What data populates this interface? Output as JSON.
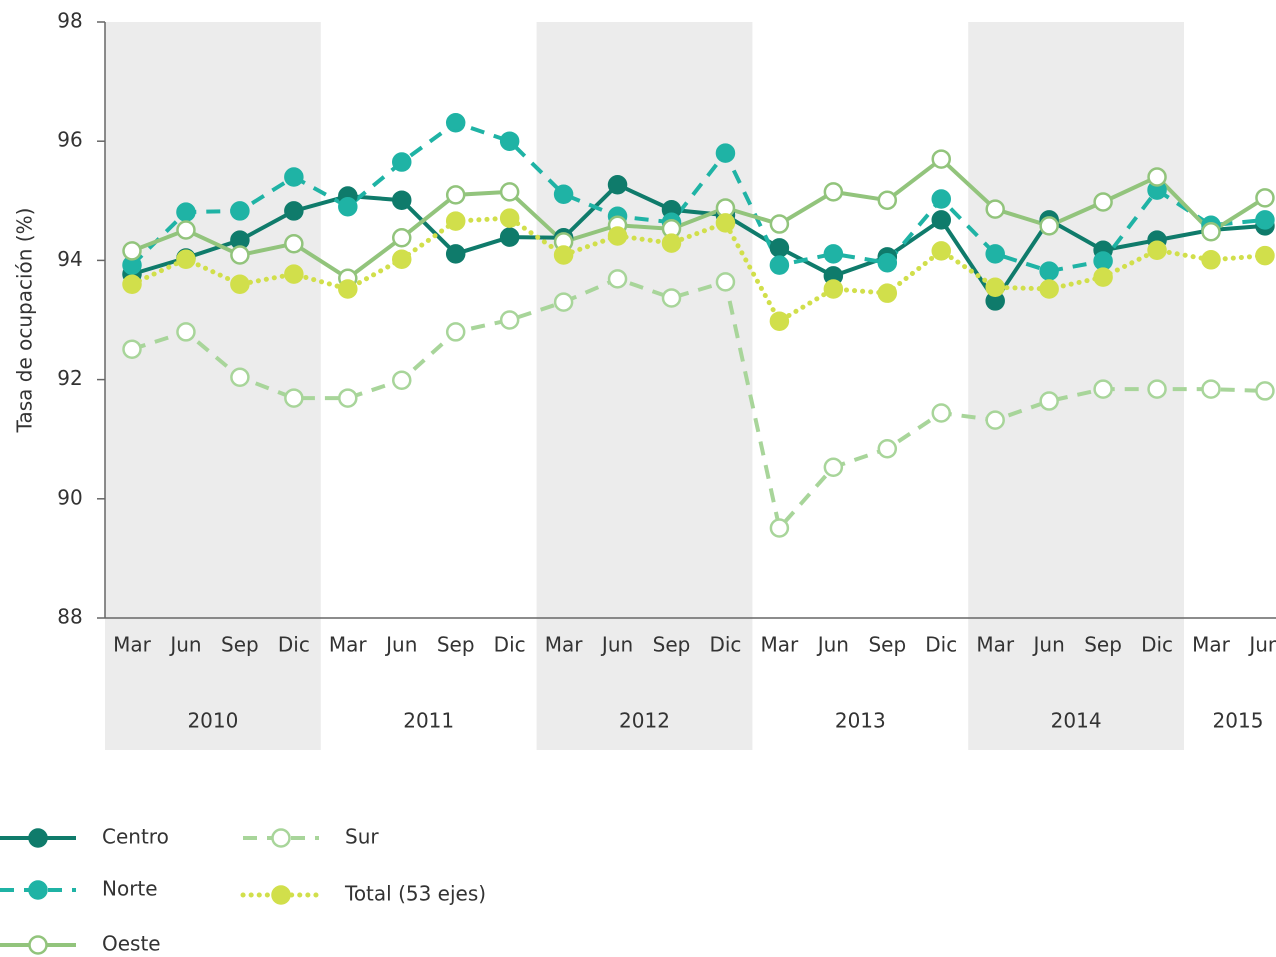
{
  "chart_data": {
    "type": "line",
    "y_label": "Tasa de ocupación (%)",
    "categories": [
      "Mar",
      "Jun",
      "Sep",
      "Dic",
      "Mar",
      "Jun",
      "Sep",
      "Dic",
      "Mar",
      "Jun",
      "Sep",
      "Dic",
      "Mar",
      "Jun",
      "Sep",
      "Dic",
      "Mar",
      "Jun",
      "Sep",
      "Dic",
      "Mar",
      "Jun"
    ],
    "year_labels": [
      "2010",
      "2011",
      "2012",
      "2013",
      "2014",
      "2015"
    ],
    "ylim": [
      88,
      98
    ],
    "yticks": [
      88,
      90,
      92,
      94,
      96,
      98
    ],
    "series": [
      {
        "name": "Centro",
        "color": "#0f7b6b",
        "style": "solid",
        "marker": "filled",
        "values": [
          93.77,
          94.04,
          94.34,
          94.83,
          95.08,
          95.01,
          94.11,
          94.39,
          94.38,
          95.27,
          94.85,
          94.76,
          94.21,
          93.74,
          94.06,
          94.68,
          93.32,
          94.68,
          94.17,
          94.34,
          94.51,
          94.58
        ]
      },
      {
        "name": "Norte",
        "color": "#1fb3a5",
        "style": "dashed",
        "marker": "filled",
        "values": [
          93.92,
          94.81,
          94.83,
          95.4,
          94.9,
          95.65,
          96.31,
          96.0,
          95.11,
          94.74,
          94.64,
          95.8,
          93.92,
          94.11,
          93.96,
          95.03,
          94.11,
          93.82,
          93.99,
          95.18,
          94.59,
          94.68
        ]
      },
      {
        "name": "Oeste",
        "color": "#92c47c",
        "style": "solid",
        "marker": "open",
        "values": [
          94.16,
          94.51,
          94.09,
          94.28,
          93.7,
          94.38,
          95.1,
          95.15,
          94.31,
          94.59,
          94.53,
          94.88,
          94.61,
          95.15,
          95.01,
          95.7,
          94.86,
          94.58,
          94.98,
          95.4,
          94.48,
          95.05
        ]
      },
      {
        "name": "Sur",
        "color": "#a8d59a",
        "style": "dashed",
        "marker": "open",
        "values": [
          92.51,
          92.8,
          92.04,
          91.69,
          91.69,
          91.99,
          92.8,
          93.0,
          93.3,
          93.69,
          93.37,
          93.64,
          89.51,
          90.53,
          90.84,
          91.44,
          91.32,
          91.64,
          91.84,
          91.84,
          91.84,
          91.81
        ]
      },
      {
        "name": "Total (53 ejes)",
        "color": "#d1df4b",
        "style": "dotted",
        "marker": "filled",
        "values": [
          93.6,
          94.02,
          93.6,
          93.77,
          93.52,
          94.02,
          94.66,
          94.71,
          94.09,
          94.41,
          94.29,
          94.63,
          92.98,
          93.52,
          93.45,
          94.16,
          93.55,
          93.52,
          93.72,
          94.17,
          94.01,
          94.08
        ]
      }
    ]
  }
}
